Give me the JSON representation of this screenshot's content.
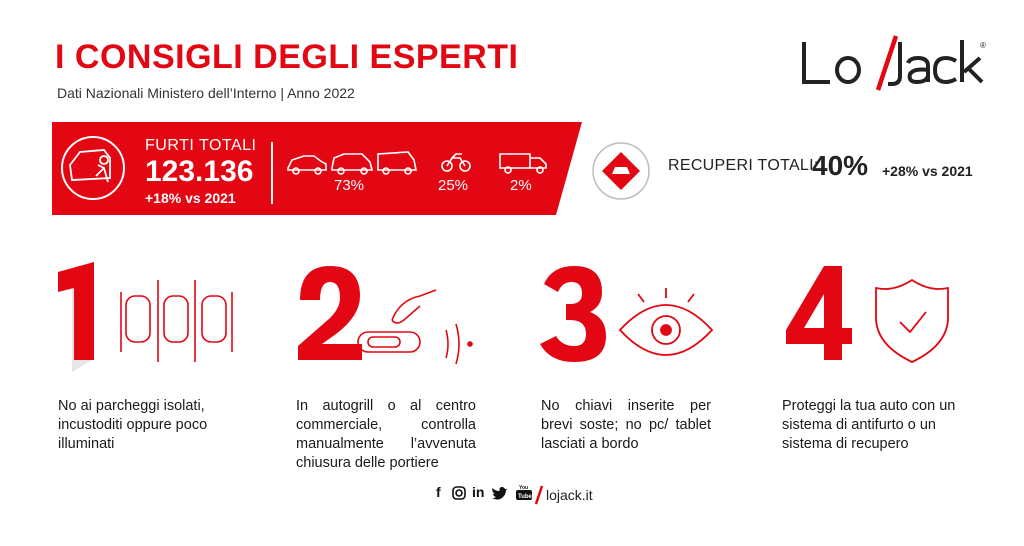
{
  "header": {
    "title": "I CONSIGLI DEGLI ESPERTI",
    "subtitle": "Dati Nazionali Ministero dell’Interno | Anno 2022"
  },
  "logo": {
    "text": "Lo/Jack",
    "registered": "®"
  },
  "banner": {
    "furti_label": "FURTI TOTALI",
    "furti_value": "123.136",
    "furti_delta": "+18% vs 2021",
    "categories": [
      {
        "icon": "car-suv-van-icon",
        "percent": "73%"
      },
      {
        "icon": "motorcycle-icon",
        "percent": "25%"
      },
      {
        "icon": "truck-icon",
        "percent": "2%"
      }
    ]
  },
  "recuperi": {
    "label": "RECUPERI TOTALI:",
    "value": "40%",
    "delta": "+28% vs 2021"
  },
  "tips": [
    {
      "number": "1",
      "icon": "parked-cars-icon",
      "text": "No ai parcheggi isolati, incustoditi oppure poco illuminati"
    },
    {
      "number": "2",
      "icon": "door-handle-remote-icon",
      "text": "In autogrill o al centro commerciale, controlla manualmente l’avvenuta chiusura delle portiere"
    },
    {
      "number": "3",
      "icon": "eye-icon",
      "text": "No chiavi inserite per brevi soste; no pc/ tablet lasciati a bordo"
    },
    {
      "number": "4",
      "icon": "shield-check-icon",
      "text": "Proteggi la tua auto con un sistema di antifurto o un sistema di recupero"
    }
  ],
  "footer": {
    "social": [
      "f",
      "ig",
      "in",
      "tw",
      "yt"
    ],
    "website": "lojack.it"
  },
  "colors": {
    "brand_red": "#e30613",
    "dark": "#222222"
  }
}
